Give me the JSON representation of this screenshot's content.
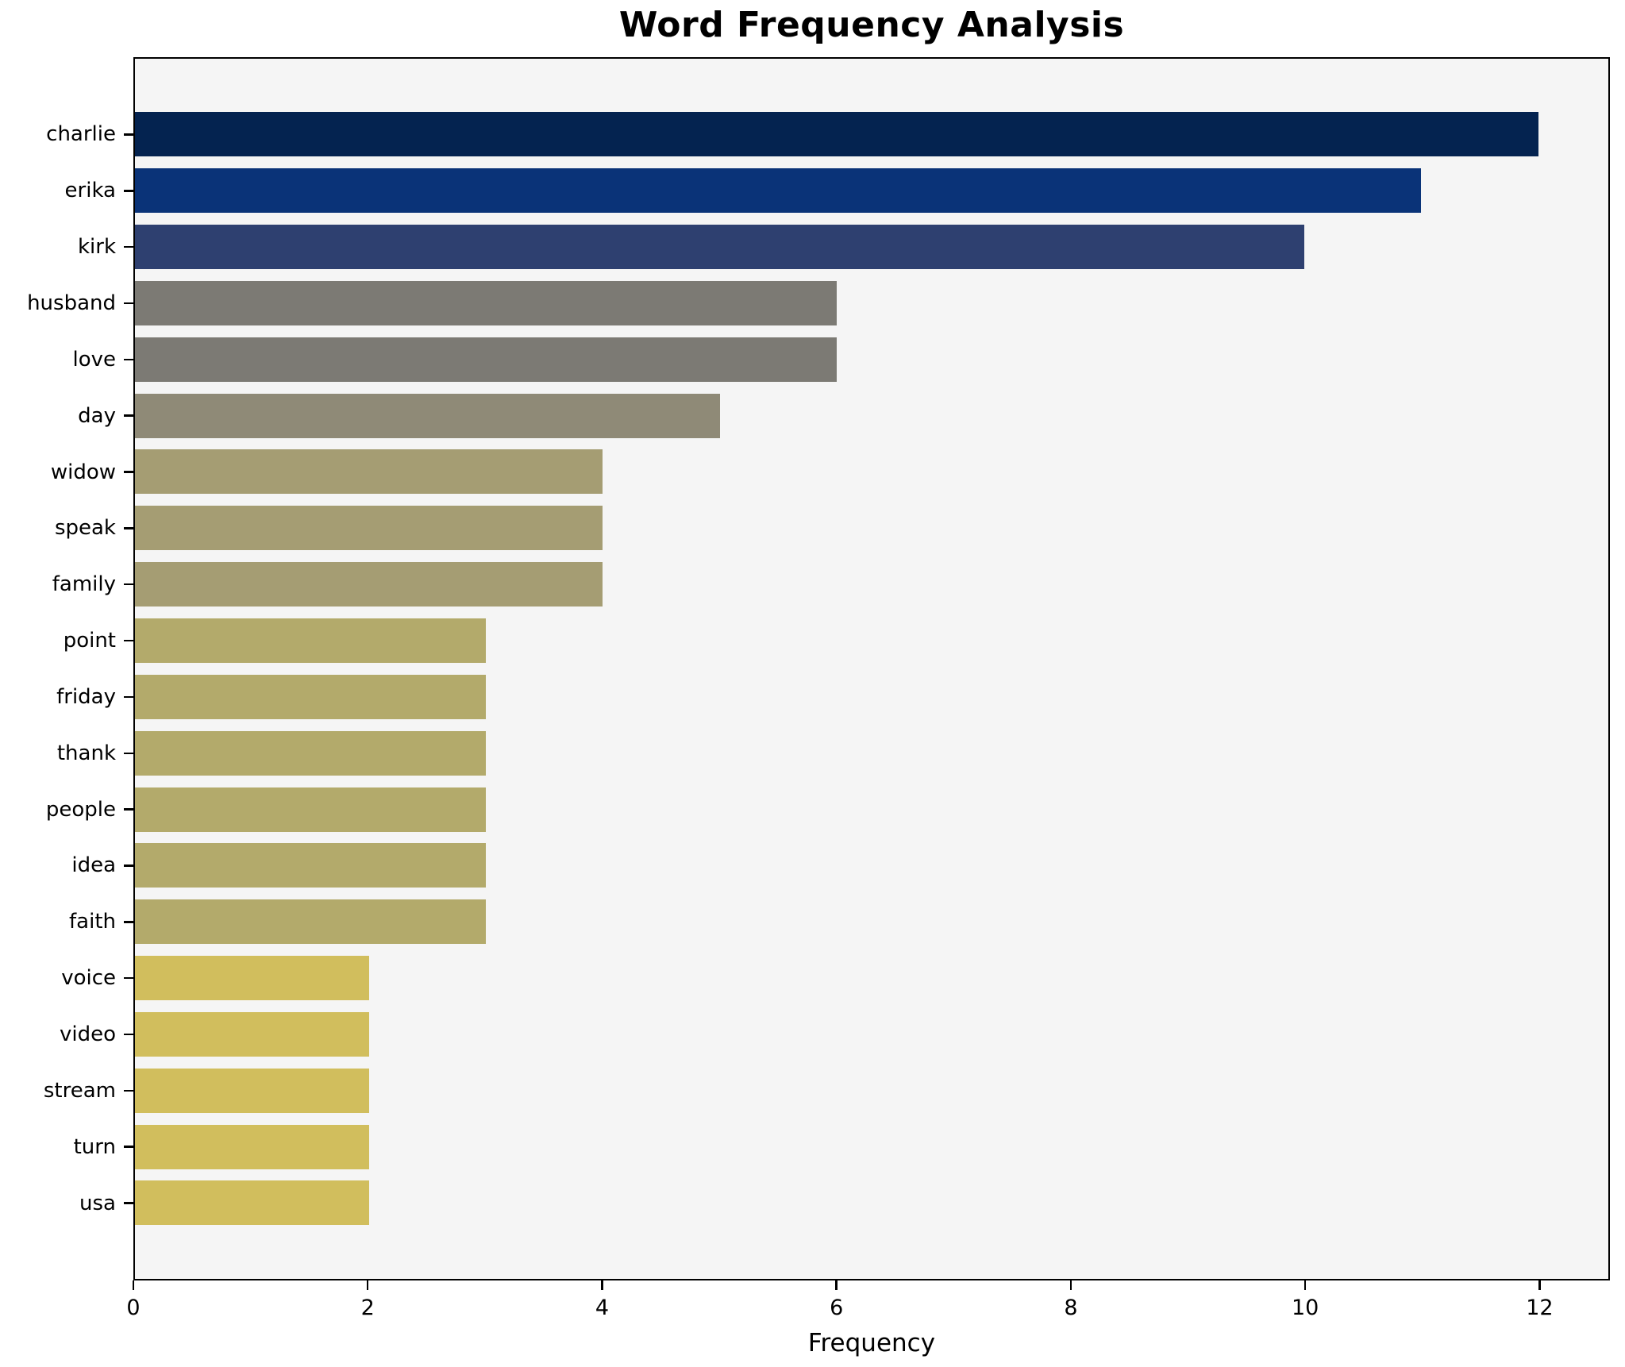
{
  "title": "Word Frequency Analysis",
  "chart_data": {
    "type": "bar",
    "orientation": "horizontal",
    "title": "Word Frequency Analysis",
    "xlabel": "Frequency",
    "ylabel": "",
    "grid": false,
    "legend": false,
    "xlim": [
      0,
      12.6
    ],
    "x_ticks": [
      0,
      2,
      4,
      6,
      8,
      10,
      12
    ],
    "plot_background": "#f5f5f5",
    "axis_color": "#000000",
    "categories": [
      "charlie",
      "erika",
      "kirk",
      "husband",
      "love",
      "day",
      "widow",
      "speak",
      "family",
      "point",
      "friday",
      "thank",
      "people",
      "idea",
      "faith",
      "voice",
      "video",
      "stream",
      "turn",
      "usa"
    ],
    "values": [
      12,
      11,
      10,
      6,
      6,
      5,
      4,
      4,
      4,
      3,
      3,
      3,
      3,
      3,
      3,
      2,
      2,
      2,
      2,
      2
    ],
    "bar_colors": [
      "#042350",
      "#0a3378",
      "#2e4070",
      "#7c7a74",
      "#7c7a74",
      "#8f8a77",
      "#a59d73",
      "#a59d73",
      "#a59d73",
      "#b3aa6b",
      "#b3aa6b",
      "#b3aa6b",
      "#b3aa6b",
      "#b3aa6b",
      "#b3aa6b",
      "#d1be5d",
      "#d1be5d",
      "#d1be5d",
      "#d1be5d",
      "#d1be5d"
    ]
  }
}
